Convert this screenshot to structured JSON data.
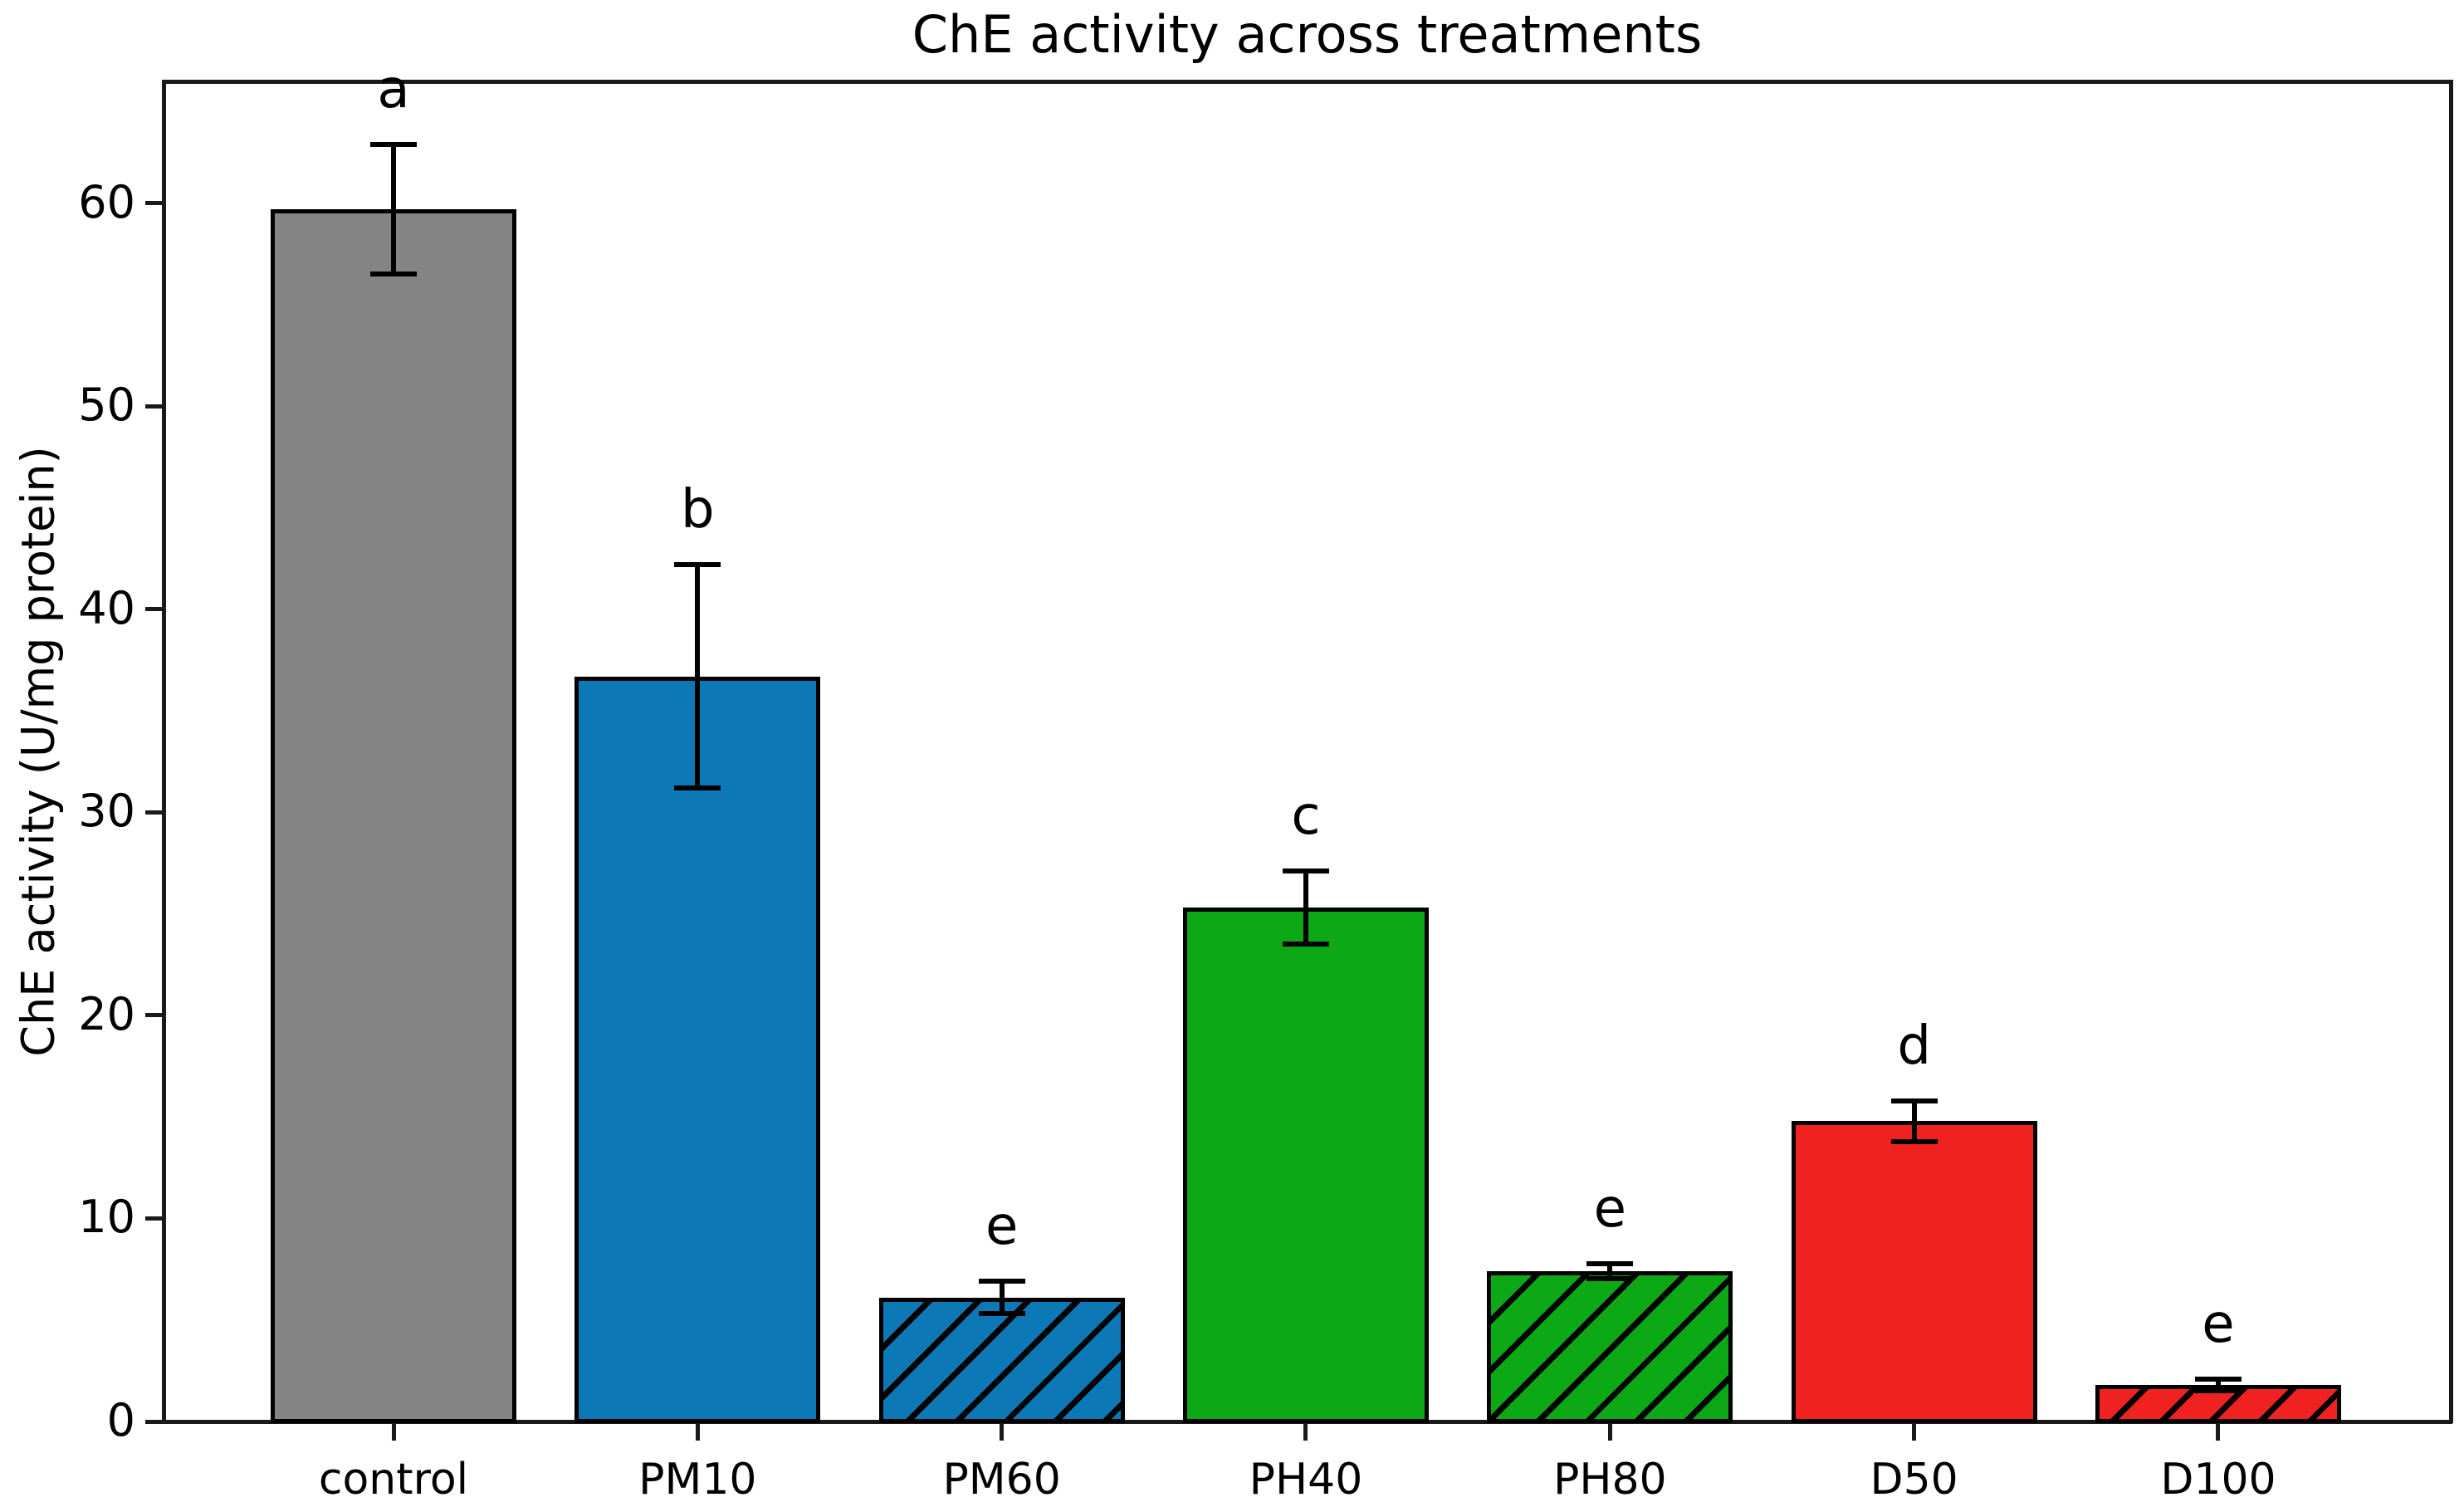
{
  "chart_data": {
    "type": "bar",
    "title": "ChE activity across treatments",
    "xlabel": "",
    "ylabel": "ChE activity (U/mg protein)",
    "categories": [
      "control",
      "PM10",
      "PM60",
      "PH40",
      "PH80",
      "D50",
      "D100"
    ],
    "values": [
      59.7,
      36.7,
      6.1,
      25.3,
      7.4,
      14.8,
      1.8
    ],
    "errors": [
      3.2,
      5.5,
      0.8,
      1.8,
      0.35,
      1.0,
      0.3
    ],
    "sig_letters": [
      "a",
      "b",
      "e",
      "c",
      "e",
      "d",
      "e"
    ],
    "bar_colors": [
      "#848484",
      "#0d78b6",
      "#0d78b6",
      "#0ca816",
      "#0ca816",
      "#f02121",
      "#f02121"
    ],
    "hatched": [
      false,
      false,
      true,
      false,
      true,
      false,
      true
    ],
    "hatch_style": "/",
    "hatch_color": "#000000",
    "edge_color": "#000000",
    "error_color": "#000000",
    "ylim": [
      0,
      66
    ],
    "yticks": [
      0,
      10,
      20,
      30,
      40,
      50,
      60
    ],
    "grid": false,
    "legend": null,
    "background": "#ffffff"
  }
}
